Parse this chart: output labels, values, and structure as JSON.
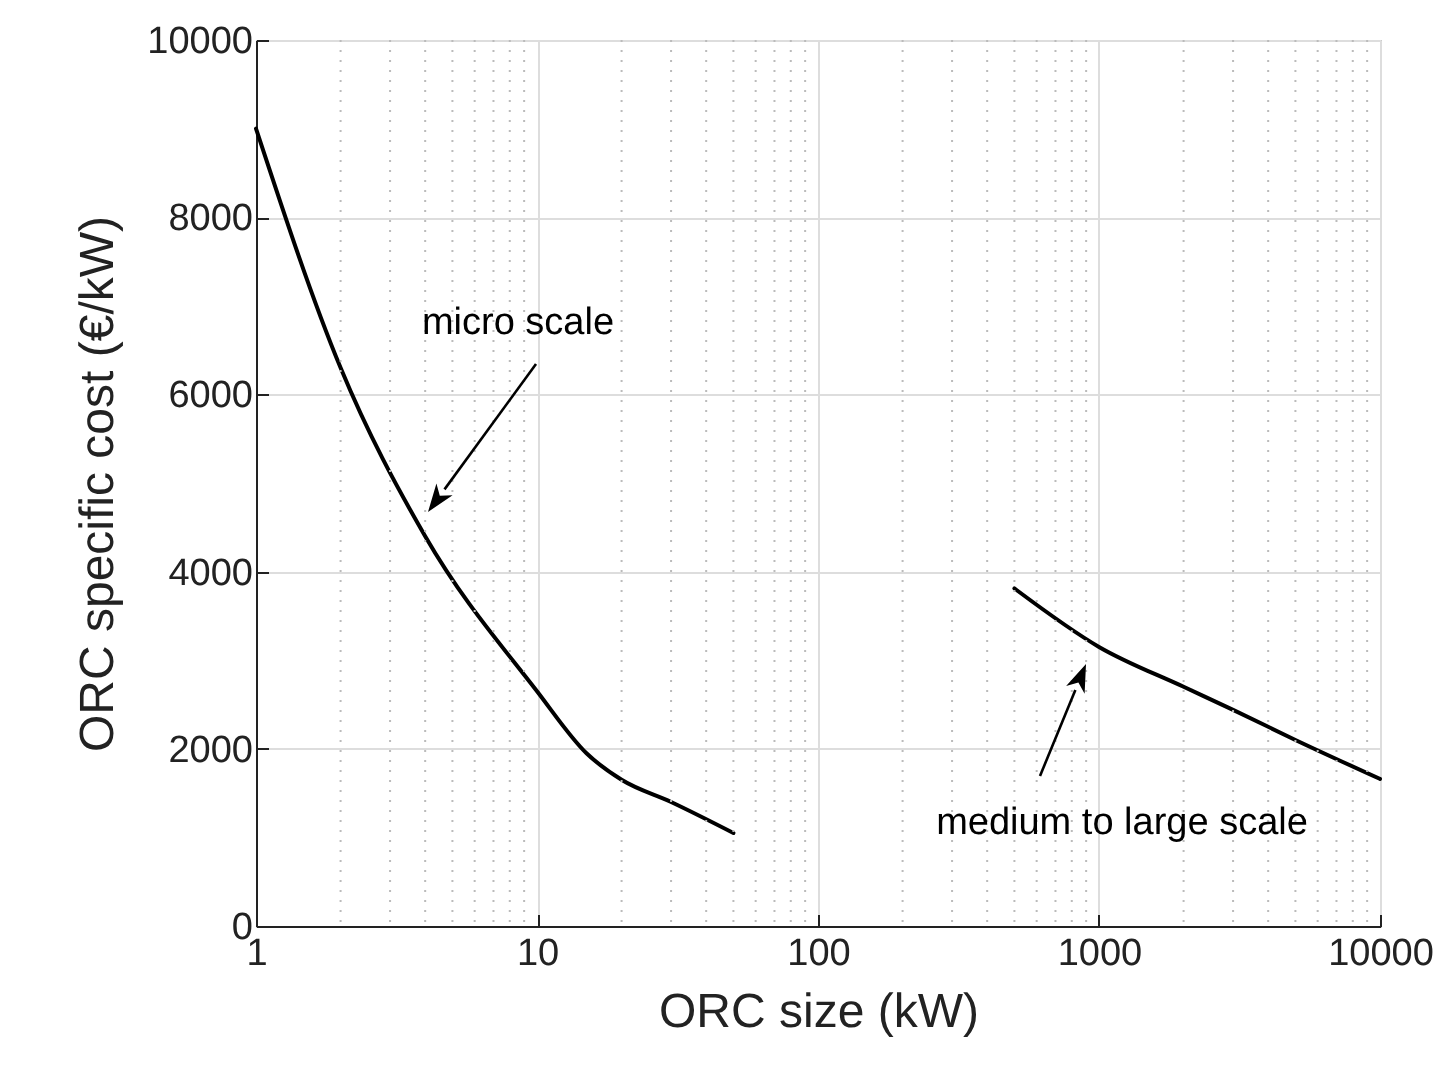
{
  "chart_data": {
    "type": "line",
    "xlabel": "ORC size (kW)",
    "ylabel": "ORC specific cost (€/kW)",
    "log": "x",
    "grid": true,
    "legend": false,
    "xlim": [
      1,
      10000
    ],
    "xticks": [
      1,
      10,
      100,
      1000,
      10000
    ],
    "ylim": [
      0,
      10000
    ],
    "yticks": [
      0,
      2000,
      4000,
      6000,
      8000,
      10000
    ],
    "series": [
      {
        "color": "#000000",
        "x": [
          1,
          2,
          4,
          10,
          15,
          20,
          30,
          50
        ],
        "values": [
          9000,
          6300,
          4400,
          2650,
          1950,
          1650,
          1400,
          1050
        ]
      },
      {
        "color": "#000000",
        "x": [
          500,
          1000,
          2000,
          3000,
          5000,
          10000
        ],
        "values": [
          3810,
          3150,
          2700,
          2440,
          2100,
          1660
        ]
      }
    ],
    "annotations": [
      "micro scale",
      "medium to large scale"
    ]
  }
}
